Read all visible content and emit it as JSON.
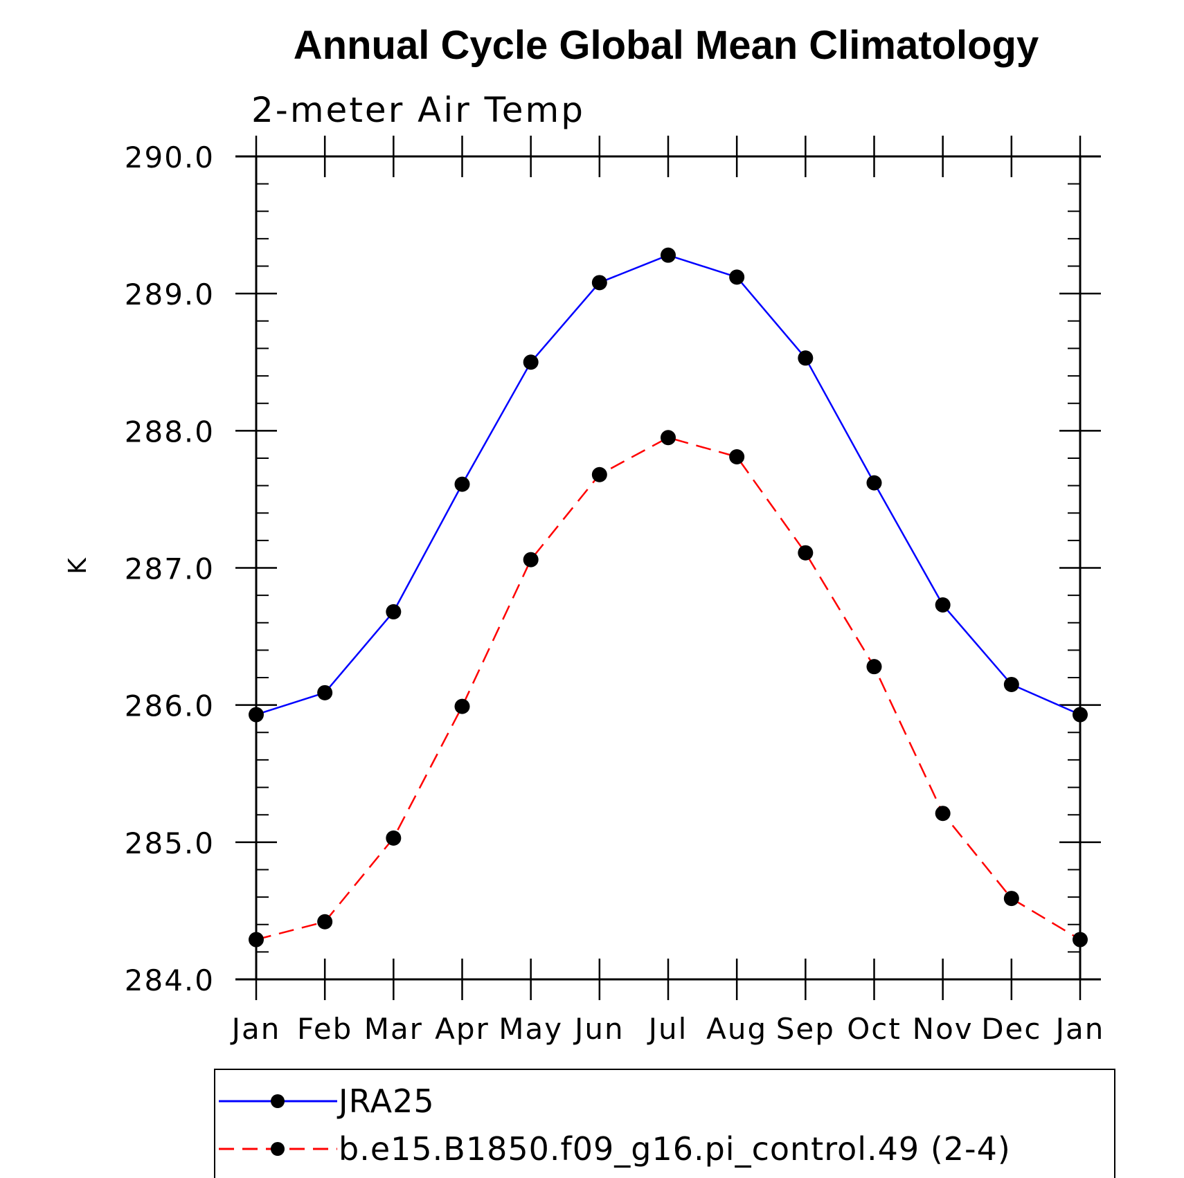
{
  "chart_data": {
    "type": "line",
    "title": "Annual Cycle Global Mean Climatology",
    "subtitle": "2-meter Air Temp",
    "xlabel": "",
    "ylabel": "K",
    "categories": [
      "Jan",
      "Feb",
      "Mar",
      "Apr",
      "May",
      "Jun",
      "Jul",
      "Aug",
      "Sep",
      "Oct",
      "Nov",
      "Dec",
      "Jan"
    ],
    "ylim": [
      284.0,
      290.0
    ],
    "y_ticks": [
      "284.0",
      "285.0",
      "286.0",
      "287.0",
      "288.0",
      "289.0",
      "290.0"
    ],
    "y_tick_values": [
      284.0,
      285.0,
      286.0,
      287.0,
      288.0,
      289.0,
      290.0
    ],
    "y_minor_step": 0.2,
    "grid": false,
    "legend_position": "bottom",
    "series": [
      {
        "name": "JRA25",
        "color": "#0000ff",
        "line_style": "solid",
        "marker": "filled-circle",
        "marker_color": "#000000",
        "values": [
          285.93,
          286.09,
          286.68,
          287.61,
          288.5,
          289.08,
          289.28,
          289.12,
          288.53,
          287.62,
          286.73,
          286.15,
          285.93
        ]
      },
      {
        "name": "b.e15.B1850.f09_g16.pi_control.49 (2-4)",
        "color": "#ff0000",
        "line_style": "dashed",
        "marker": "filled-circle",
        "marker_color": "#000000",
        "values": [
          284.29,
          284.42,
          285.03,
          285.99,
          287.06,
          287.68,
          287.95,
          287.81,
          287.11,
          286.28,
          285.21,
          284.59,
          284.29
        ]
      }
    ]
  }
}
